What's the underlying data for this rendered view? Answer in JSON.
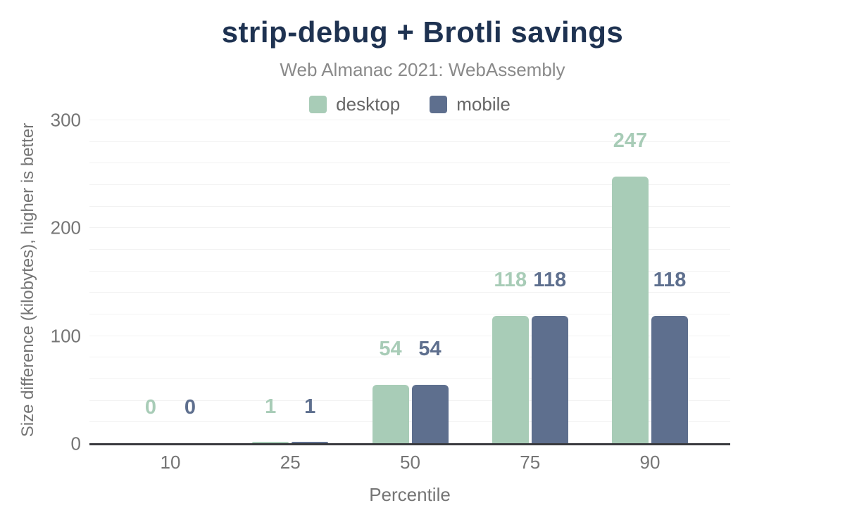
{
  "chart_data": {
    "type": "bar",
    "title": "strip-debug + Brotli savings",
    "subtitle": "Web Almanac 2021: WebAssembly",
    "xlabel": "Percentile",
    "ylabel": "Size difference (kilobytes), higher is better",
    "categories": [
      "10",
      "25",
      "50",
      "75",
      "90"
    ],
    "series": [
      {
        "name": "desktop",
        "color": "#a8ccb7",
        "values": [
          0,
          1,
          54,
          118,
          247
        ]
      },
      {
        "name": "mobile",
        "color": "#5e6f8e",
        "values": [
          0,
          1,
          54,
          118,
          118
        ]
      }
    ],
    "ylim": [
      0,
      300
    ],
    "yticks": [
      0,
      100,
      200,
      300
    ],
    "grid": true,
    "grid_step": 20,
    "legend_position": "top",
    "value_labels": true
  },
  "colors": {
    "background": "#ffffff",
    "title": "#1e3251",
    "subtitle": "#8a8a8a",
    "tick_label": "#757575",
    "legend_label": "#666666",
    "axis_line": "#393a3e",
    "gridline": "#f2f2f2"
  }
}
